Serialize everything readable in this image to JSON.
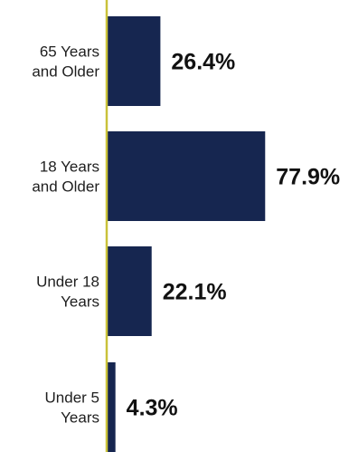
{
  "chart_data": {
    "type": "bar",
    "orientation": "horizontal",
    "categories": [
      [
        "65 Years",
        "and Older"
      ],
      [
        "18 Years",
        "and Older"
      ],
      [
        "Under 18",
        "Years"
      ],
      [
        "Under 5",
        "Years"
      ]
    ],
    "values": [
      26.4,
      77.9,
      22.1,
      4.3
    ],
    "value_labels": [
      "26.4%",
      "77.9%",
      "22.1%",
      "4.3%"
    ],
    "xlim": [
      0,
      100
    ],
    "title": "",
    "xlabel": "",
    "ylabel": "",
    "grid": false,
    "legend": "none",
    "colors": {
      "bar": "#162650",
      "axis": "#c9c23a",
      "label": "#1f1f1f",
      "value": "#111111"
    }
  }
}
